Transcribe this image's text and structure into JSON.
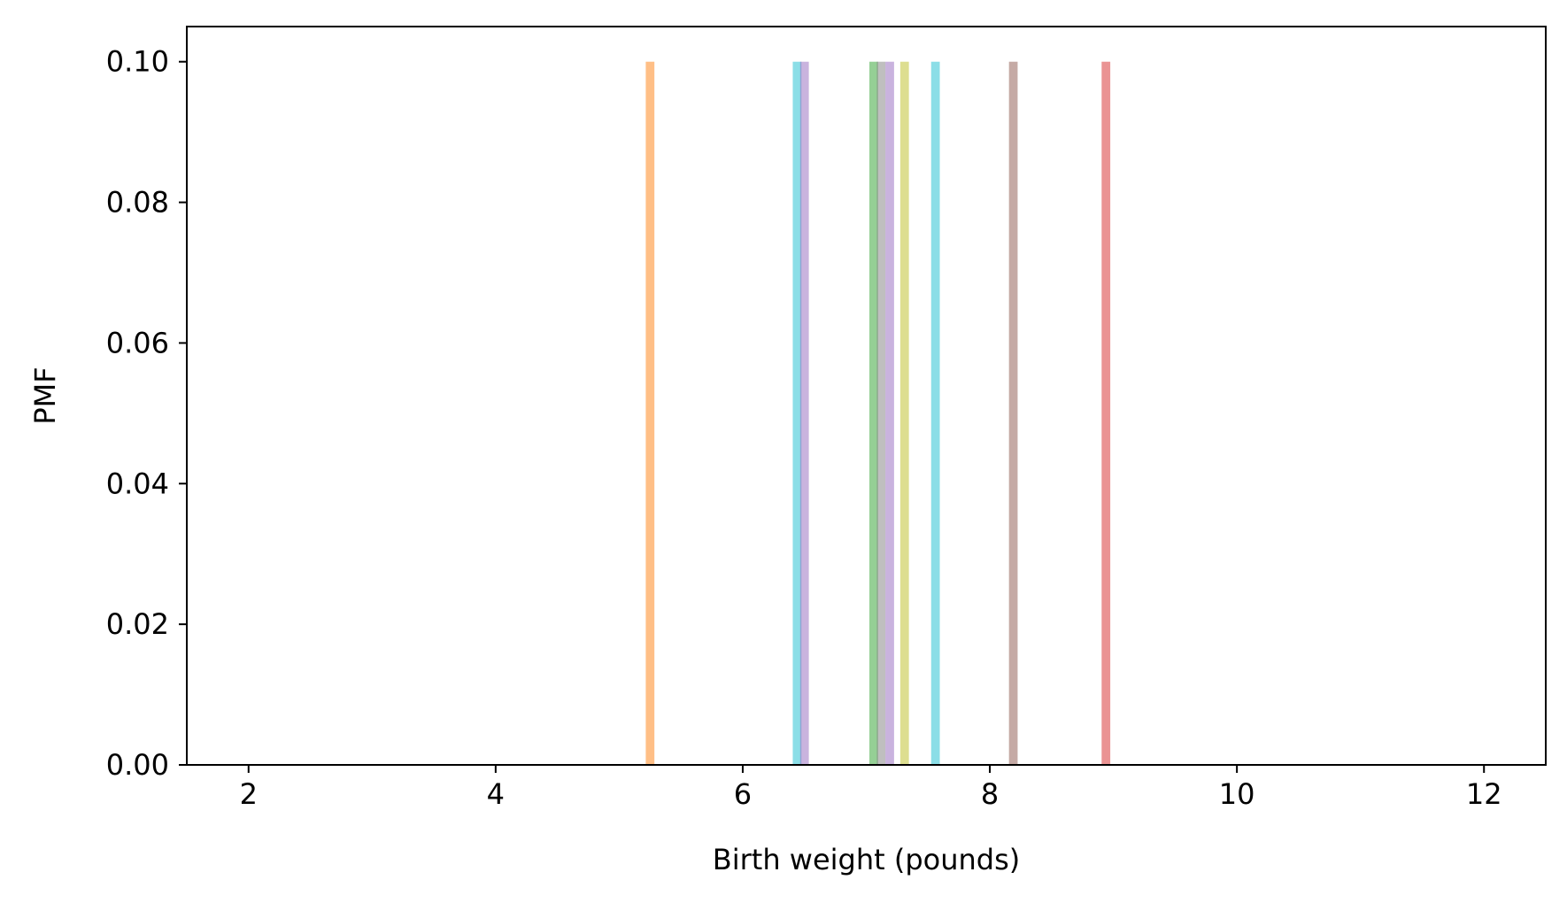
{
  "chart_data": {
    "type": "bar",
    "title": "",
    "xlabel": "Birth weight (pounds)",
    "ylabel": "PMF",
    "xlim": [
      1.5,
      12.5
    ],
    "ylim": [
      0,
      0.105
    ],
    "x_ticks": [
      2,
      4,
      6,
      8,
      10,
      12
    ],
    "y_ticks": [
      0.0,
      0.02,
      0.04,
      0.06,
      0.08,
      0.1
    ],
    "x_tick_labels": [
      "2",
      "4",
      "6",
      "8",
      "10",
      "12"
    ],
    "y_tick_labels": [
      "0.00",
      "0.02",
      "0.04",
      "0.06",
      "0.08",
      "0.10"
    ],
    "grid": false,
    "legend": false,
    "bar_width": 0.07,
    "bar_alpha": 0.5,
    "bars": [
      {
        "x": 5.25,
        "value": 0.1,
        "color": "#ff7f0e"
      },
      {
        "x": 6.44,
        "value": 0.1,
        "color": "#17becf"
      },
      {
        "x": 6.5,
        "value": 0.1,
        "color": "#9467bd"
      },
      {
        "x": 7.06,
        "value": 0.1,
        "color": "#2ca02c"
      },
      {
        "x": 7.12,
        "value": 0.1,
        "color": "#7f7f7f"
      },
      {
        "x": 7.19,
        "value": 0.1,
        "color": "#9467bd"
      },
      {
        "x": 7.31,
        "value": 0.1,
        "color": "#bcbd22"
      },
      {
        "x": 7.56,
        "value": 0.1,
        "color": "#17becf"
      },
      {
        "x": 8.19,
        "value": 0.1,
        "color": "#8c564b"
      },
      {
        "x": 8.94,
        "value": 0.1,
        "color": "#d62728"
      }
    ]
  }
}
